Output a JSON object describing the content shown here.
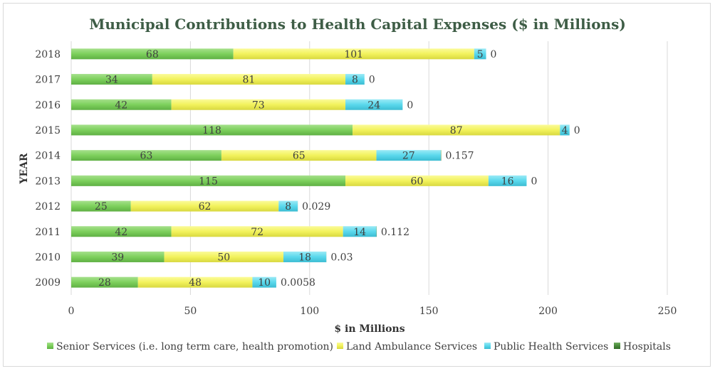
{
  "chart_data": {
    "type": "bar",
    "orientation": "horizontal",
    "stacked": true,
    "title": "Municipal Contributions to Health Capital Expenses ($ in Millions)",
    "xlabel": "$ in Millions",
    "ylabel": "YEAR",
    "xlim": [
      0,
      250
    ],
    "xticks": [
      "0",
      "50",
      "100",
      "150",
      "200",
      "250"
    ],
    "grid": "vertical",
    "legend_position": "bottom",
    "categories": [
      "2009",
      "2010",
      "2011",
      "2012",
      "2013",
      "2014",
      "2015",
      "2016",
      "2017",
      "2018"
    ],
    "series": [
      {
        "name": "Senior Services (i.e. long term care, health promotion)",
        "color": "#7dd05c",
        "values": [
          28,
          39,
          42,
          25,
          115,
          63,
          118,
          42,
          34,
          68
        ],
        "labels": [
          "28",
          "39",
          "42",
          "25",
          "115",
          "63",
          "118",
          "42",
          "34",
          "68"
        ]
      },
      {
        "name": "Land Ambulance Services",
        "color": "#f2f25c",
        "values": [
          48,
          50,
          72,
          62,
          60,
          65,
          87,
          73,
          81,
          101
        ],
        "labels": [
          "48",
          "50",
          "72",
          "62",
          "60",
          "65",
          "87",
          "73",
          "81",
          "101"
        ]
      },
      {
        "name": "Public Health Services",
        "color": "#5ad8ec",
        "values": [
          10,
          18,
          14,
          8,
          16,
          27,
          4,
          24,
          8,
          5
        ],
        "labels": [
          "10",
          "18",
          "14",
          "8",
          "16",
          "27",
          "4",
          "24",
          "8",
          "5"
        ]
      },
      {
        "name": "Hospitals",
        "color": "#4a8a3c",
        "values": [
          0.0058,
          0.03,
          0.112,
          0.029,
          0,
          0.157,
          0,
          0,
          0,
          0
        ],
        "labels": [
          "0.0058",
          "0.03",
          "0.112",
          "0.029",
          "0",
          "0.157",
          "0",
          "0",
          "0",
          "0"
        ]
      }
    ]
  }
}
